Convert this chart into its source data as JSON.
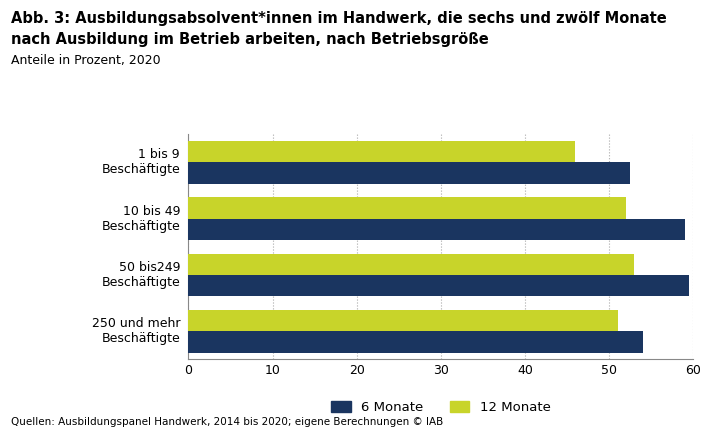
{
  "title_line1": "Abb. 3: Ausbildungsabsolvent*innen im Handwerk, die sechs und zwölf Monate",
  "title_line2": "nach Ausbildung im Betrieb arbeiten, nach Betriebsgröße",
  "subtitle": "Anteile in Prozent, 2020",
  "footnote": "Quellen: Ausbildungspanel Handwerk, 2014 bis 2020; eigene Berechnungen © IAB",
  "categories": [
    "1 bis 9\nBeschäftigte",
    "10 bis 49\nBeschäftigte",
    "50 bis249\nBeschäftigte",
    "250 und mehr\nBeschäftigte"
  ],
  "values_6monate": [
    52.5,
    59.0,
    59.5,
    54.0
  ],
  "values_12monate": [
    46.0,
    52.0,
    53.0,
    51.0
  ],
  "color_6monate": "#1a3560",
  "color_12monate": "#c8d42a",
  "xlim": [
    0,
    60
  ],
  "xticks": [
    0,
    10,
    20,
    30,
    40,
    50,
    60
  ],
  "legend_6monate": "6 Monate",
  "legend_12monate": "12 Monate",
  "background_color": "#ffffff",
  "grid_color": "#aaaaaa"
}
